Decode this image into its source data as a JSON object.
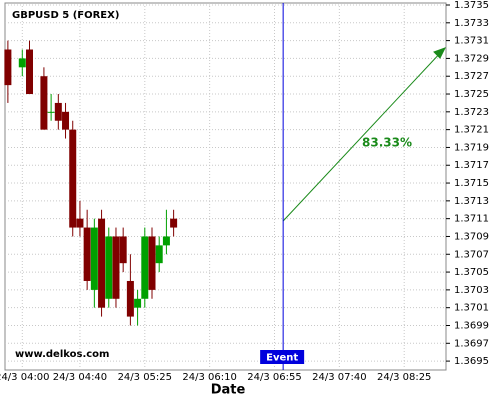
{
  "chart_data": {
    "type": "candlestick",
    "title": "GBPUSD 5 (FOREX)",
    "x_label": "Date",
    "watermark": "www.delkos.com",
    "x": [
      230,
      240,
      245,
      255,
      260,
      265,
      270,
      275,
      280,
      285,
      290,
      295,
      300,
      305,
      310,
      315,
      320,
      325,
      330,
      335,
      340,
      345
    ],
    "open": [
      1.373,
      1.3728,
      1.373,
      1.3727,
      1.3723,
      1.3724,
      1.3723,
      1.3721,
      1.3711,
      1.371,
      1.3703,
      1.3711,
      1.3702,
      1.3709,
      1.3709,
      1.3704,
      1.3701,
      1.3702,
      1.3709,
      1.3706,
      1.3708,
      1.3711
    ],
    "high": [
      1.3731,
      1.373,
      1.3731,
      1.3728,
      1.3725,
      1.3725,
      1.3724,
      1.3722,
      1.3713,
      1.3712,
      1.3711,
      1.3712,
      1.371,
      1.371,
      1.371,
      1.3707,
      1.3703,
      1.371,
      1.371,
      1.3709,
      1.3712,
      1.3712
    ],
    "low": [
      1.3724,
      1.3727,
      1.3725,
      1.3721,
      1.3722,
      1.3721,
      1.372,
      1.3709,
      1.3709,
      1.3703,
      1.3701,
      1.37,
      1.3701,
      1.3701,
      1.3705,
      1.3699,
      1.3699,
      1.3701,
      1.3702,
      1.3705,
      1.3707,
      1.3709
    ],
    "close": [
      1.3726,
      1.3729,
      1.3725,
      1.3721,
      1.3723,
      1.3722,
      1.3721,
      1.371,
      1.371,
      1.3704,
      1.371,
      1.3701,
      1.3709,
      1.3702,
      1.3706,
      1.37,
      1.3702,
      1.3709,
      1.3703,
      1.3708,
      1.3709,
      1.371
    ],
    "up_color": "#00a000",
    "down_color": "#800000",
    "xlim": [
      228,
      534
    ],
    "xticks": [
      {
        "value": 240,
        "label": "24/3 04:00"
      },
      {
        "value": 280,
        "label": "24/3 04:40"
      },
      {
        "value": 325,
        "label": "24/3 05:25"
      },
      {
        "value": 370,
        "label": "24/3 06:10"
      },
      {
        "value": 415,
        "label": "24/3 06:55"
      },
      {
        "value": 460,
        "label": "24/3 07:40"
      },
      {
        "value": 505,
        "label": "24/3 08:25"
      }
    ],
    "ylim": [
      1.3694,
      1.3735
    ],
    "yticks": [
      1.3695,
      1.3697,
      1.3699,
      1.3701,
      1.3703,
      1.3705,
      1.3707,
      1.3709,
      1.3711,
      1.3713,
      1.3715,
      1.3717,
      1.3719,
      1.3721,
      1.3723,
      1.3725,
      1.3727,
      1.3729,
      1.3731,
      1.3733,
      1.3735
    ],
    "grid": true,
    "event": {
      "label": "Event",
      "x": 421,
      "color": "#0000dd"
    },
    "prediction": {
      "label": "83.33%",
      "color": "#1a8a1a"
    }
  }
}
